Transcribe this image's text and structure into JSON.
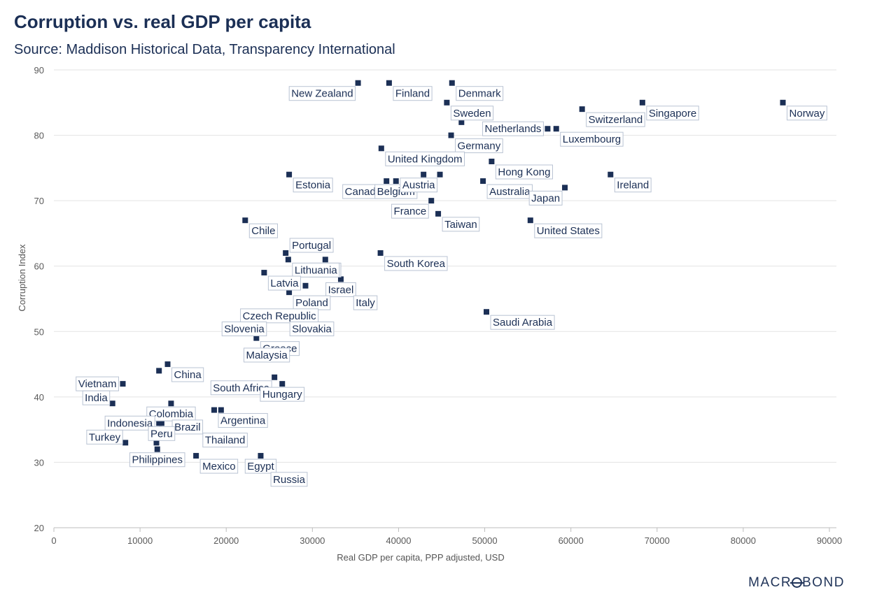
{
  "chart_data": {
    "type": "scatter",
    "title": "Corruption vs. real GDP per capita",
    "subtitle": "Source: Maddison Historical Data, Transparency International",
    "xlabel": "Real GDP per capita, PPP adjusted, USD",
    "ylabel": "Corruption Index",
    "xlim": [
      0,
      90000
    ],
    "ylim": [
      20,
      90
    ],
    "xticks": [
      0,
      10000,
      20000,
      30000,
      40000,
      50000,
      60000,
      70000,
      80000,
      90000
    ],
    "yticks": [
      20,
      30,
      40,
      50,
      60,
      70,
      80,
      90
    ],
    "grid": "horizontal",
    "marker_color": "#1b2f55",
    "points": [
      {
        "label": "New Zealand",
        "x": 35300,
        "y": 88,
        "anchor": "bl"
      },
      {
        "label": "Finland",
        "x": 38900,
        "y": 88,
        "anchor": "br"
      },
      {
        "label": "Denmark",
        "x": 46200,
        "y": 88,
        "anchor": "br"
      },
      {
        "label": "Sweden",
        "x": 45600,
        "y": 85,
        "anchor": "br"
      },
      {
        "label": "",
        "x": 47300,
        "y": 82,
        "anchor": "br"
      },
      {
        "label": "Norway",
        "x": 84600,
        "y": 85,
        "anchor": "br"
      },
      {
        "label": "Singapore",
        "x": 68300,
        "y": 85,
        "anchor": "br"
      },
      {
        "label": "Switzerland",
        "x": 61300,
        "y": 84,
        "anchor": "br"
      },
      {
        "label": "Netherlands",
        "x": 57300,
        "y": 81,
        "anchor": "l"
      },
      {
        "label": "Luxembourg",
        "x": 58300,
        "y": 81,
        "anchor": "br"
      },
      {
        "label": "Germany",
        "x": 46100,
        "y": 80,
        "anchor": "br"
      },
      {
        "label": "United Kingdom",
        "x": 38000,
        "y": 78,
        "anchor": "br"
      },
      {
        "label": "Hong Kong",
        "x": 50800,
        "y": 76,
        "anchor": "br"
      },
      {
        "label": "Estonia",
        "x": 27300,
        "y": 74,
        "anchor": "br"
      },
      {
        "label": "Ireland",
        "x": 64600,
        "y": 74,
        "anchor": "br"
      },
      {
        "label": "Canada",
        "x": 38600,
        "y": 73,
        "anchor": "bl"
      },
      {
        "label": "Belgium",
        "x": 39700,
        "y": 73,
        "anchor": "b"
      },
      {
        "label": "Austria",
        "x": 44800,
        "y": 74,
        "anchor": "bl"
      },
      {
        "label": "",
        "x": 42900,
        "y": 74,
        "anchor": "br"
      },
      {
        "label": "Australia",
        "x": 49800,
        "y": 73,
        "anchor": "br"
      },
      {
        "label": "Japan",
        "x": 59300,
        "y": 72,
        "anchor": "bl"
      },
      {
        "label": "France",
        "x": 43800,
        "y": 70,
        "anchor": "bl"
      },
      {
        "label": "Taiwan",
        "x": 44600,
        "y": 68,
        "anchor": "br"
      },
      {
        "label": "United States",
        "x": 55300,
        "y": 67,
        "anchor": "br"
      },
      {
        "label": "Chile",
        "x": 22200,
        "y": 67,
        "anchor": "br"
      },
      {
        "label": "Portugal",
        "x": 26900,
        "y": 62,
        "anchor": "tr"
      },
      {
        "label": "South Korea",
        "x": 37900,
        "y": 62,
        "anchor": "br"
      },
      {
        "label": "Spain",
        "x": 31500,
        "y": 61,
        "anchor": "b"
      },
      {
        "label": "Lithuania",
        "x": 27200,
        "y": 61,
        "anchor": "br"
      },
      {
        "label": "",
        "x": 33000,
        "y": 60,
        "anchor": "br"
      },
      {
        "label": "Latvia",
        "x": 24400,
        "y": 59,
        "anchor": "br"
      },
      {
        "label": "",
        "x": 29200,
        "y": 57,
        "anchor": "br"
      },
      {
        "label": "Israel",
        "x": 33300,
        "y": 58,
        "anchor": "b"
      },
      {
        "label": "Poland",
        "x": 27300,
        "y": 56,
        "anchor": "br"
      },
      {
        "label": "Italy",
        "x": 34300,
        "y": 56,
        "anchor": "br"
      },
      {
        "label": "Saudi Arabia",
        "x": 50200,
        "y": 53,
        "anchor": "br"
      },
      {
        "label": "Czech Republic",
        "x": 31000,
        "y": 54,
        "anchor": "bl"
      },
      {
        "label": "Slovakia",
        "x": 26900,
        "y": 52,
        "anchor": "br"
      },
      {
        "label": "Slovenia",
        "x": 25000,
        "y": 52,
        "anchor": "bl"
      },
      {
        "label": "Greece",
        "x": 23500,
        "y": 49,
        "anchor": "br"
      },
      {
        "label": "Malaysia",
        "x": 24700,
        "y": 48,
        "anchor": "b"
      },
      {
        "label": "China",
        "x": 13200,
        "y": 45,
        "anchor": "br"
      },
      {
        "label": "",
        "x": 12200,
        "y": 44,
        "anchor": "br"
      },
      {
        "label": "South Africa",
        "x": 25600,
        "y": 43,
        "anchor": "bl"
      },
      {
        "label": "Hungary",
        "x": 26500,
        "y": 42,
        "anchor": "b"
      },
      {
        "label": "Vietnam",
        "x": 8000,
        "y": 42,
        "anchor": "l"
      },
      {
        "label": "India",
        "x": 6800,
        "y": 39,
        "anchor": "tl"
      },
      {
        "label": "Colombia",
        "x": 13600,
        "y": 39,
        "anchor": "b"
      },
      {
        "label": "",
        "x": 11800,
        "y": 38,
        "anchor": "br"
      },
      {
        "label": "",
        "x": 14000,
        "y": 38,
        "anchor": "br"
      },
      {
        "label": "Argentina",
        "x": 18600,
        "y": 38,
        "anchor": "br"
      },
      {
        "label": "",
        "x": 19400,
        "y": 38,
        "anchor": "br"
      },
      {
        "label": "Indonesia",
        "x": 12200,
        "y": 36,
        "anchor": "l"
      },
      {
        "label": "Brazil",
        "x": 15500,
        "y": 37,
        "anchor": "b"
      },
      {
        "label": "Peru",
        "x": 12500,
        "y": 36,
        "anchor": "b"
      },
      {
        "label": "Thailand",
        "x": 16800,
        "y": 35,
        "anchor": "br"
      },
      {
        "label": "Turkey",
        "x": 8300,
        "y": 33,
        "anchor": "tl"
      },
      {
        "label": "",
        "x": 11900,
        "y": 33,
        "anchor": "br"
      },
      {
        "label": "Philippines",
        "x": 12000,
        "y": 32,
        "anchor": "b"
      },
      {
        "label": "Egypt",
        "x": 24000,
        "y": 31,
        "anchor": "b"
      },
      {
        "label": "Mexico",
        "x": 16500,
        "y": 31,
        "anchor": "br"
      },
      {
        "label": "Russia",
        "x": 24700,
        "y": 29,
        "anchor": "br"
      }
    ]
  },
  "brand": "MACROBOND"
}
